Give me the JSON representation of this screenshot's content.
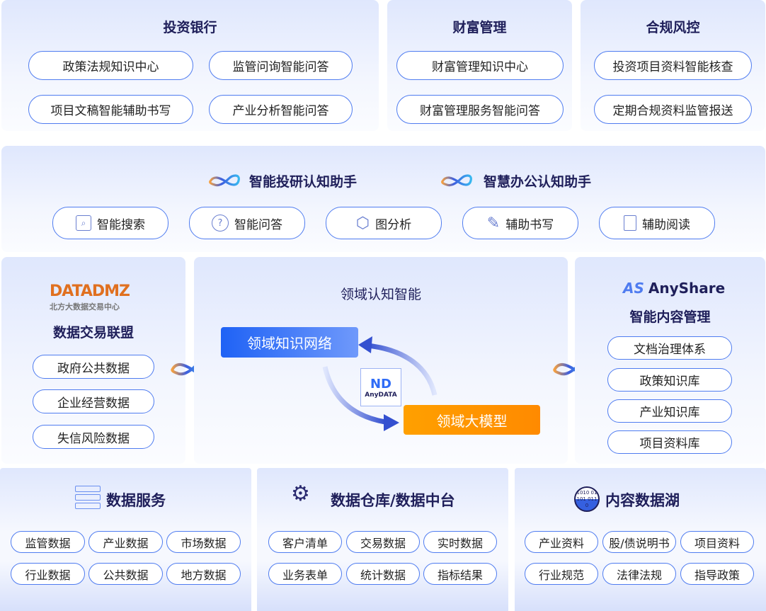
{
  "top": [
    {
      "title": "投资银行",
      "items": [
        "政策法规知识中心",
        "监管问询智能问答",
        "项目文稿智能辅助书写",
        "产业分析智能问答"
      ]
    },
    {
      "title": "财富管理",
      "items": [
        "财富管理知识中心",
        "财富管理服务智能问答"
      ]
    },
    {
      "title": "合规风控",
      "items": [
        "投资项目资料智能核查",
        "定期合规资料监管报送"
      ]
    }
  ],
  "assistants": [
    "智能投研认知助手",
    "智慧办公认知助手"
  ],
  "tools": [
    {
      "label": "智能搜索",
      "icon": "search-icon"
    },
    {
      "label": "智能问答",
      "icon": "question-bubble-icon"
    },
    {
      "label": "图分析",
      "icon": "graph-icon"
    },
    {
      "label": "辅助书写",
      "icon": "pencil-icon"
    },
    {
      "label": "辅助阅读",
      "icon": "book-icon"
    }
  ],
  "left": {
    "logo_text": "DATADMZ",
    "logo_sub": "北方大数据交易中心",
    "title": "数据交易联盟",
    "items": [
      "政府公共数据",
      "企业经营数据",
      "失信风险数据"
    ]
  },
  "center": {
    "title": "领域认知智能",
    "kn": "领域知识网络",
    "llm": "领域大模型",
    "logo": "AnyDATA"
  },
  "right": {
    "logo": "AnyShare",
    "title": "智能内容管理",
    "items": [
      "文档治理体系",
      "政策知识库",
      "产业知识库",
      "项目资料库"
    ]
  },
  "bottom": [
    {
      "title": "数据服务",
      "icon": "server-icon",
      "items": [
        "监管数据",
        "产业数据",
        "市场数据",
        "行业数据",
        "公共数据",
        "地方数据"
      ]
    },
    {
      "title": "数据仓库/数据中台",
      "icon": "gear-icon",
      "items": [
        "客户清单",
        "交易数据",
        "实时数据",
        "业务表单",
        "统计数据",
        "指标结果"
      ]
    },
    {
      "title": "内容数据湖",
      "icon": "binary-globe-icon",
      "binary": "1010 01101 0110",
      "items": [
        "产业资料",
        "股/债说明书",
        "项目资料",
        "行业规范",
        "法律法规",
        "指导政策"
      ]
    }
  ],
  "colors": {
    "accent": "#4f7cf0",
    "title": "#1f1f5a",
    "blue_box": "#2f6cf6",
    "orange_box": "#ff9000"
  }
}
